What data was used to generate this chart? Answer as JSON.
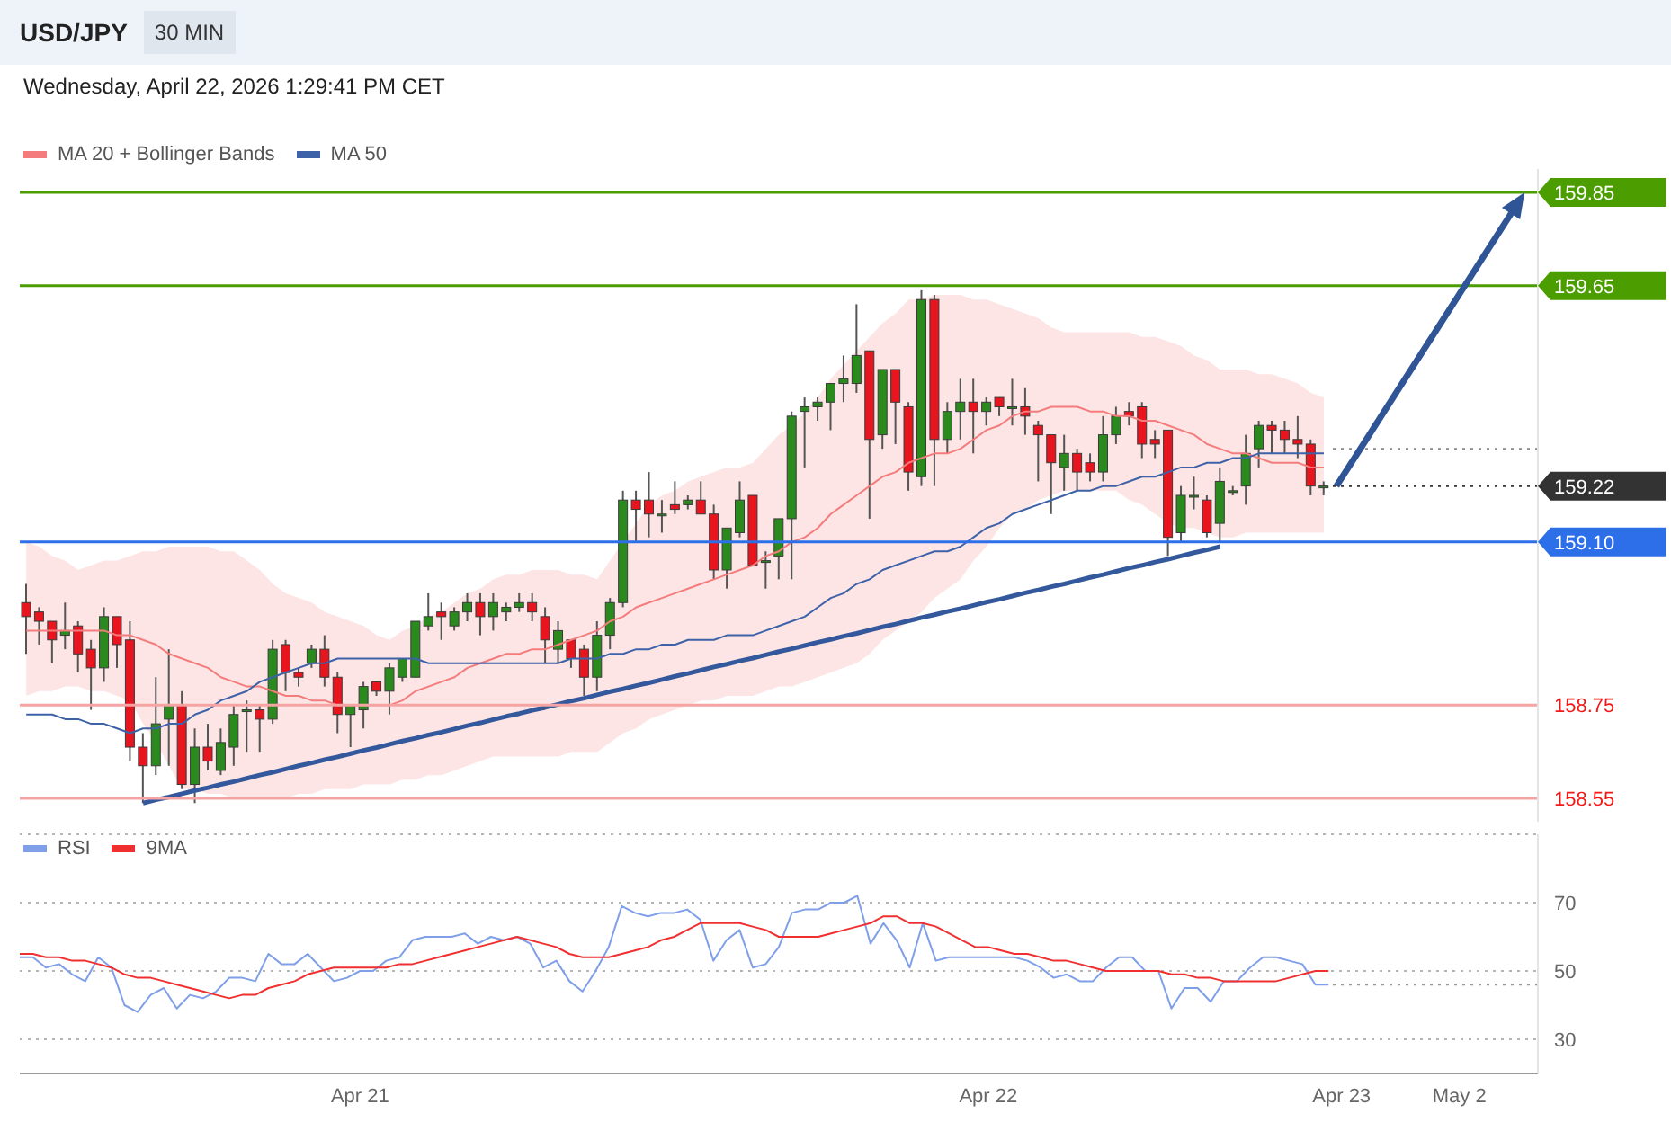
{
  "chart_data": [
    {
      "type": "candlestick",
      "title": "USD/JPY",
      "subtitle": "30 MIN",
      "annotations": [
        "Wednesday, April 22, 2026 1:29:41 PM CET"
      ],
      "categories": [
        null,
        null,
        null,
        null,
        null,
        null,
        null,
        null,
        null,
        null,
        null,
        null,
        null,
        null,
        null,
        null,
        null,
        null,
        null,
        null,
        null,
        null,
        null,
        null,
        null,
        null,
        null,
        null,
        null,
        null,
        null,
        null,
        null,
        null,
        null,
        null,
        null,
        null,
        null,
        null,
        null,
        null,
        null,
        null,
        null,
        null,
        null,
        null,
        null,
        null,
        null,
        null,
        null,
        null,
        null,
        null,
        null,
        null,
        null,
        null,
        null,
        null,
        null,
        null,
        null,
        null,
        null,
        null,
        null,
        null,
        null,
        null,
        null,
        null,
        null,
        null,
        null,
        null,
        null,
        null,
        null,
        null,
        null,
        null,
        null,
        null,
        null,
        null,
        null,
        null,
        null,
        null,
        null,
        null,
        null,
        null,
        null,
        null,
        null,
        null,
        null,
        null,
        null,
        null,
        null,
        null,
        null,
        null,
        null,
        null,
        null,
        null,
        null,
        null,
        null,
        null,
        null
      ],
      "ohlc": [
        [
          158.97,
          159.01,
          158.86,
          158.94
        ],
        [
          158.95,
          158.96,
          158.88,
          158.93
        ],
        [
          158.93,
          158.93,
          158.84,
          158.89
        ],
        [
          158.9,
          158.97,
          158.87,
          158.91
        ],
        [
          158.92,
          158.93,
          158.82,
          158.86
        ],
        [
          158.87,
          158.89,
          158.74,
          158.83
        ],
        [
          158.83,
          158.96,
          158.8,
          158.94
        ],
        [
          158.94,
          158.94,
          158.83,
          158.88
        ],
        [
          158.89,
          158.93,
          158.63,
          158.66
        ],
        [
          158.66,
          158.69,
          158.54,
          158.62
        ],
        [
          158.62,
          158.81,
          158.6,
          158.71
        ],
        [
          158.72,
          158.87,
          158.62,
          158.75
        ],
        [
          158.75,
          158.78,
          158.57,
          158.58
        ],
        [
          158.58,
          158.7,
          158.54,
          158.66
        ],
        [
          158.66,
          158.71,
          158.61,
          158.63
        ],
        [
          158.61,
          158.7,
          158.6,
          158.67
        ],
        [
          158.66,
          158.75,
          158.62,
          158.73
        ],
        [
          158.74,
          158.76,
          158.65,
          158.74
        ],
        [
          158.74,
          158.75,
          158.65,
          158.72
        ],
        [
          158.72,
          158.89,
          158.71,
          158.87
        ],
        [
          158.88,
          158.89,
          158.78,
          158.82
        ],
        [
          158.82,
          158.83,
          158.79,
          158.81
        ],
        [
          158.84,
          158.88,
          158.83,
          158.87
        ],
        [
          158.87,
          158.9,
          158.79,
          158.81
        ],
        [
          158.81,
          158.82,
          158.69,
          158.73
        ],
        [
          158.73,
          158.75,
          158.66,
          158.75
        ],
        [
          158.74,
          158.8,
          158.7,
          158.79
        ],
        [
          158.8,
          158.8,
          158.77,
          158.78
        ],
        [
          158.78,
          158.84,
          158.73,
          158.83
        ],
        [
          158.81,
          158.85,
          158.8,
          158.85
        ],
        [
          158.81,
          158.93,
          158.81,
          158.93
        ],
        [
          158.92,
          158.99,
          158.91,
          158.94
        ],
        [
          158.95,
          158.97,
          158.89,
          158.94
        ],
        [
          158.92,
          158.96,
          158.91,
          158.95
        ],
        [
          158.95,
          158.99,
          158.93,
          158.97
        ],
        [
          158.97,
          158.99,
          158.9,
          158.94
        ],
        [
          158.94,
          158.99,
          158.91,
          158.97
        ],
        [
          158.95,
          158.97,
          158.93,
          158.96
        ],
        [
          158.96,
          158.99,
          158.95,
          158.97
        ],
        [
          158.97,
          158.99,
          158.93,
          158.95
        ],
        [
          158.94,
          158.96,
          158.84,
          158.89
        ],
        [
          158.87,
          158.93,
          158.84,
          158.91
        ],
        [
          158.89,
          158.89,
          158.83,
          158.85
        ],
        [
          158.87,
          158.88,
          158.77,
          158.81
        ],
        [
          158.81,
          158.93,
          158.78,
          158.9
        ],
        [
          158.9,
          158.98,
          158.87,
          158.97
        ],
        [
          158.97,
          159.21,
          158.96,
          159.19
        ],
        [
          159.19,
          159.21,
          159.1,
          159.17
        ],
        [
          159.19,
          159.25,
          159.11,
          159.16
        ],
        [
          159.16,
          159.19,
          159.12,
          159.16
        ],
        [
          159.18,
          159.23,
          159.16,
          159.17
        ],
        [
          159.18,
          159.2,
          159.17,
          159.19
        ],
        [
          159.19,
          159.23,
          159.16,
          159.16
        ],
        [
          159.16,
          159.18,
          159.02,
          159.04
        ],
        [
          159.04,
          159.13,
          159.0,
          159.13
        ],
        [
          159.12,
          159.23,
          159.11,
          159.19
        ],
        [
          159.2,
          159.2,
          159.05,
          159.05
        ],
        [
          159.06,
          159.08,
          159.0,
          159.06
        ],
        [
          159.07,
          159.15,
          159.02,
          159.15
        ],
        [
          159.15,
          159.38,
          159.02,
          159.37
        ],
        [
          159.38,
          159.41,
          159.26,
          159.39
        ],
        [
          159.39,
          159.41,
          159.36,
          159.4
        ],
        [
          159.4,
          159.44,
          159.34,
          159.44
        ],
        [
          159.44,
          159.5,
          159.4,
          159.45
        ],
        [
          159.44,
          159.61,
          159.42,
          159.5
        ],
        [
          159.51,
          159.51,
          159.15,
          159.32
        ],
        [
          159.33,
          159.47,
          159.3,
          159.47
        ],
        [
          159.47,
          159.47,
          159.31,
          159.4
        ],
        [
          159.39,
          159.4,
          159.21,
          159.25
        ],
        [
          159.24,
          159.64,
          159.22,
          159.62
        ],
        [
          159.62,
          159.63,
          159.22,
          159.32
        ],
        [
          159.32,
          159.4,
          159.29,
          159.38
        ],
        [
          159.38,
          159.45,
          159.32,
          159.4
        ],
        [
          159.4,
          159.45,
          159.29,
          159.38
        ],
        [
          159.38,
          159.41,
          159.35,
          159.4
        ],
        [
          159.41,
          159.41,
          159.37,
          159.39
        ],
        [
          159.39,
          159.45,
          159.35,
          159.39
        ],
        [
          159.39,
          159.43,
          159.33,
          159.37
        ],
        [
          159.35,
          159.36,
          159.23,
          159.33
        ],
        [
          159.33,
          159.33,
          159.16,
          159.27
        ],
        [
          159.26,
          159.33,
          159.21,
          159.29
        ],
        [
          159.29,
          159.3,
          159.21,
          159.25
        ],
        [
          159.27,
          159.29,
          159.23,
          159.25
        ],
        [
          159.25,
          159.37,
          159.23,
          159.33
        ],
        [
          159.33,
          159.39,
          159.31,
          159.37
        ],
        [
          159.38,
          159.4,
          159.35,
          159.37
        ],
        [
          159.39,
          159.4,
          159.28,
          159.31
        ],
        [
          159.32,
          159.34,
          159.28,
          159.31
        ],
        [
          159.34,
          159.34,
          159.07,
          159.11
        ],
        [
          159.12,
          159.22,
          159.1,
          159.2
        ],
        [
          159.2,
          159.24,
          159.17,
          159.2
        ],
        [
          159.19,
          159.2,
          159.11,
          159.12
        ],
        [
          159.14,
          159.26,
          159.1,
          159.23
        ],
        [
          159.21,
          159.22,
          159.2,
          159.21
        ],
        [
          159.22,
          159.33,
          159.18,
          159.29
        ],
        [
          159.3,
          159.36,
          159.26,
          159.35
        ],
        [
          159.35,
          159.36,
          159.29,
          159.34
        ],
        [
          159.34,
          159.36,
          159.29,
          159.32
        ],
        [
          159.32,
          159.37,
          159.28,
          159.31
        ],
        [
          159.31,
          159.32,
          159.2,
          159.22
        ],
        [
          159.22,
          159.23,
          159.2,
          159.22
        ],
        null,
        null,
        null,
        null,
        null,
        null,
        null,
        null,
        null,
        null,
        null,
        null,
        null,
        null,
        null,
        null
      ],
      "ylim": [
        158.5,
        159.9
      ],
      "yticks": [
        158.55,
        158.75,
        {
          "value": 159.1,
          "label": "159.10"
        },
        159.22,
        159.65,
        159.85
      ],
      "tick_labels": "y",
      "legend": "top left",
      "series": [
        {
          "name": "MA 20 + Bollinger Bands",
          "type": "line",
          "color": "#f47c7c",
          "values": [
            158.91,
            158.91,
            158.91,
            158.91,
            158.91,
            158.91,
            158.91,
            158.9,
            158.9,
            158.89,
            158.88,
            158.86,
            158.85,
            158.84,
            158.83,
            158.81,
            158.8,
            158.79,
            158.79,
            158.78,
            158.77,
            158.77,
            158.76,
            158.76,
            158.75,
            158.75,
            158.75,
            158.75,
            158.75,
            158.76,
            158.78,
            158.79,
            158.8,
            158.81,
            158.83,
            158.84,
            158.85,
            158.86,
            158.86,
            158.87,
            158.87,
            158.88,
            158.89,
            158.9,
            158.91,
            158.93,
            158.94,
            158.96,
            158.97,
            158.98,
            158.99,
            159.0,
            159.01,
            159.02,
            159.03,
            159.04,
            159.05,
            159.07,
            159.08,
            159.1,
            159.11,
            159.13,
            159.16,
            159.18,
            159.2,
            159.22,
            159.24,
            159.25,
            159.27,
            159.28,
            159.29,
            159.29,
            159.3,
            159.32,
            159.34,
            159.35,
            159.37,
            159.38,
            159.38,
            159.39,
            159.39,
            159.39,
            159.38,
            159.38,
            159.37,
            159.37,
            159.36,
            159.36,
            159.35,
            159.34,
            159.33,
            159.31,
            159.3,
            159.29,
            159.29,
            159.28,
            159.27,
            159.27,
            159.27,
            159.26,
            159.26,
            null,
            null,
            null,
            null,
            null,
            null,
            null,
            null,
            null,
            null,
            null,
            null,
            null,
            null,
            null,
            null
          ],
          "lower": [
            158.77,
            158.78,
            158.78,
            158.79,
            158.79,
            158.78,
            158.78,
            158.77,
            158.76,
            158.71,
            158.67,
            158.62,
            158.57,
            158.57,
            158.56,
            158.56,
            158.55,
            158.55,
            158.55,
            158.55,
            158.55,
            158.56,
            158.56,
            158.57,
            158.57,
            158.57,
            158.58,
            158.58,
            158.58,
            158.59,
            158.59,
            158.6,
            158.6,
            158.61,
            158.62,
            158.63,
            158.64,
            158.64,
            158.64,
            158.64,
            158.64,
            158.64,
            158.65,
            158.65,
            158.65,
            158.67,
            158.69,
            158.7,
            158.72,
            158.73,
            158.74,
            158.75,
            158.76,
            158.76,
            158.77,
            158.77,
            158.77,
            158.78,
            158.79,
            158.79,
            158.8,
            158.81,
            158.82,
            158.83,
            158.84,
            158.86,
            158.89,
            158.91,
            158.93,
            158.95,
            158.98,
            159.0,
            159.02,
            159.06,
            159.09,
            159.13,
            159.16,
            159.17,
            159.19,
            159.2,
            159.21,
            159.21,
            159.21,
            159.21,
            159.21,
            159.19,
            159.18,
            159.16,
            159.14,
            159.13,
            159.13,
            159.12,
            159.11,
            159.11,
            159.12,
            159.12,
            159.12,
            159.12,
            159.12,
            159.12,
            159.12,
            null,
            null,
            null,
            null,
            null,
            null,
            null,
            null,
            null,
            null,
            null,
            null,
            null,
            null,
            null,
            null
          ],
          "upper": [
            159.1,
            159.09,
            159.07,
            159.06,
            159.04,
            159.05,
            159.06,
            159.06,
            159.07,
            159.08,
            159.08,
            159.09,
            159.09,
            159.09,
            159.09,
            159.08,
            159.08,
            159.06,
            159.04,
            159.01,
            158.99,
            158.98,
            158.97,
            158.95,
            158.94,
            158.93,
            158.92,
            158.9,
            158.89,
            158.91,
            158.92,
            158.94,
            158.95,
            158.97,
            158.99,
            159.0,
            159.02,
            159.03,
            159.03,
            159.04,
            159.04,
            159.04,
            159.03,
            159.03,
            159.02,
            159.06,
            159.1,
            159.14,
            159.18,
            159.2,
            159.21,
            159.23,
            159.24,
            159.25,
            159.26,
            159.26,
            159.27,
            159.3,
            159.33,
            159.35,
            159.38,
            159.41,
            159.45,
            159.48,
            159.51,
            159.54,
            159.57,
            159.59,
            159.62,
            159.62,
            159.63,
            159.63,
            159.63,
            159.62,
            159.62,
            159.61,
            159.6,
            159.59,
            159.58,
            159.56,
            159.55,
            159.55,
            159.55,
            159.55,
            159.55,
            159.55,
            159.54,
            159.54,
            159.53,
            159.52,
            159.5,
            159.49,
            159.47,
            159.47,
            159.47,
            159.46,
            159.46,
            159.45,
            159.44,
            159.42,
            159.41,
            null,
            null,
            null,
            null,
            null,
            null,
            null,
            null,
            null,
            null,
            null,
            null,
            null,
            null,
            null,
            null
          ]
        },
        {
          "name": "MA 50",
          "type": "line",
          "color": "#3d62a8",
          "values": [
            158.73,
            158.73,
            158.73,
            158.72,
            158.72,
            158.71,
            158.71,
            158.7,
            158.69,
            158.7,
            158.7,
            158.71,
            158.71,
            158.73,
            158.74,
            158.76,
            158.77,
            158.78,
            158.8,
            158.81,
            158.82,
            158.83,
            158.84,
            158.84,
            158.85,
            158.85,
            158.85,
            158.85,
            158.85,
            158.85,
            158.85,
            158.84,
            158.84,
            158.84,
            158.84,
            158.84,
            158.84,
            158.84,
            158.84,
            158.84,
            158.84,
            158.84,
            158.85,
            158.85,
            158.85,
            158.86,
            158.86,
            158.87,
            158.87,
            158.88,
            158.88,
            158.89,
            158.89,
            158.89,
            158.9,
            158.9,
            158.9,
            158.91,
            158.92,
            158.93,
            158.94,
            158.96,
            158.98,
            158.99,
            159.01,
            159.02,
            159.04,
            159.05,
            159.06,
            159.07,
            159.08,
            159.08,
            159.09,
            159.11,
            159.13,
            159.14,
            159.16,
            159.17,
            159.18,
            159.19,
            159.2,
            159.21,
            159.21,
            159.22,
            159.22,
            159.23,
            159.24,
            159.24,
            159.25,
            159.26,
            159.26,
            159.27,
            159.27,
            159.28,
            159.28,
            159.29,
            159.29,
            159.29,
            159.29,
            159.29,
            159.29,
            null,
            null,
            null,
            null,
            null,
            null,
            null,
            null,
            null,
            null,
            null,
            null,
            null,
            null,
            null,
            null
          ]
        },
        {
          "type": "line",
          "color": "#34589c",
          "values": [
            null,
            null,
            null,
            null,
            null,
            null,
            null,
            null,
            null,
            158.54,
            158.547,
            158.553,
            158.56,
            158.567,
            158.573,
            158.58,
            158.586,
            158.593,
            158.6,
            158.606,
            158.613,
            158.62,
            158.626,
            158.633,
            158.639,
            158.646,
            158.653,
            158.659,
            158.666,
            158.673,
            158.679,
            158.686,
            158.692,
            158.699,
            158.706,
            158.712,
            158.719,
            158.726,
            158.732,
            158.739,
            158.745,
            158.752,
            158.759,
            158.765,
            158.772,
            158.779,
            158.785,
            158.792,
            158.798,
            158.805,
            158.812,
            158.818,
            158.825,
            158.832,
            158.838,
            158.845,
            158.851,
            158.858,
            158.865,
            158.871,
            158.878,
            158.885,
            158.891,
            158.898,
            158.904,
            158.911,
            158.918,
            158.924,
            158.931,
            158.938,
            158.944,
            158.951,
            158.957,
            158.964,
            158.971,
            158.977,
            158.984,
            158.991,
            158.997,
            159.004,
            159.01,
            159.017,
            159.024,
            159.03,
            159.037,
            159.044,
            159.05,
            159.057,
            159.063,
            159.07,
            159.077,
            159.083,
            159.09,
            null,
            null,
            null,
            null,
            null,
            null,
            null,
            null,
            null,
            null,
            null,
            null,
            null,
            null,
            null,
            null,
            null,
            null,
            null,
            null,
            null,
            null,
            null,
            null
          ]
        }
      ],
      "ref_lines": [
        {
          "axis": "y",
          "value": 159.85,
          "color": "#4c9e00"
        },
        {
          "axis": "y",
          "value": 159.65,
          "color": "#4c9e00"
        },
        {
          "axis": "y",
          "value": 159.3,
          "color": "#888888",
          "line_style": "dotted"
        },
        {
          "axis": "y",
          "value": 159.22,
          "color": "#333333",
          "line_style": "dotted"
        },
        {
          "axis": "y",
          "value": 159.1,
          "color": "#2d6fe8"
        },
        {
          "axis": "y",
          "value": 158.75,
          "color": "#f5a3a3"
        },
        {
          "axis": "y",
          "value": 158.55,
          "color": "#f5a3a3"
        }
      ]
    },
    {
      "type": "line",
      "categories": [
        null,
        null,
        null,
        null,
        null,
        null,
        null,
        null,
        null,
        null,
        null,
        null,
        null,
        null,
        null,
        null,
        null,
        null,
        null,
        null,
        null,
        null,
        null,
        null,
        null,
        null,
        "Apr 21",
        null,
        null,
        null,
        null,
        null,
        null,
        null,
        null,
        null,
        null,
        null,
        null,
        null,
        null,
        null,
        null,
        null,
        null,
        null,
        null,
        null,
        null,
        null,
        null,
        null,
        null,
        null,
        null,
        null,
        null,
        null,
        null,
        null,
        null,
        null,
        null,
        null,
        null,
        null,
        null,
        null,
        null,
        null,
        null,
        null,
        null,
        null,
        "Apr 22",
        null,
        null,
        null,
        null,
        null,
        null,
        null,
        null,
        null,
        null,
        null,
        null,
        null,
        null,
        null,
        null,
        null,
        null,
        null,
        null,
        null,
        null,
        null,
        null,
        null,
        null,
        "Apr 23",
        null,
        null,
        null,
        null,
        null,
        null,
        null,
        null,
        "May 2",
        null,
        null,
        null,
        null,
        null,
        null
      ],
      "ylim": [
        20,
        90
      ],
      "yticks": [
        30,
        50,
        70
      ],
      "grid": "y",
      "legend": "top left",
      "series": [
        {
          "name": "RSI",
          "color": "#7f9fe8",
          "values": [
            54,
            54,
            51,
            52,
            49,
            47,
            54,
            51,
            40,
            38,
            43,
            45,
            39,
            43,
            42,
            44,
            48,
            48,
            47,
            55,
            52,
            52,
            55,
            51,
            47,
            48,
            50,
            50,
            53,
            54,
            59,
            60,
            60,
            60,
            61,
            58,
            60,
            59,
            60,
            58,
            51,
            53,
            47,
            44,
            50,
            57,
            69,
            67,
            66,
            67,
            67,
            68,
            65,
            53,
            59,
            62,
            51,
            52,
            57,
            67,
            68,
            68,
            70,
            70,
            72,
            58,
            64,
            59,
            51,
            64,
            53,
            54,
            54,
            54,
            54,
            54,
            54,
            53,
            51,
            48,
            49,
            47,
            47,
            51,
            54,
            54,
            50,
            50,
            39,
            45,
            45,
            41,
            47,
            47,
            51,
            54,
            54,
            53,
            52,
            46,
            46,
            null,
            null,
            null,
            null,
            null,
            null,
            null,
            null,
            null,
            null,
            null,
            null,
            null,
            null,
            null,
            null
          ]
        },
        {
          "name": "9MA",
          "color": "#f03030",
          "values": [
            55,
            55,
            54,
            54,
            53,
            53,
            52,
            51,
            49,
            48,
            48,
            47,
            46,
            45,
            44,
            43,
            42,
            43,
            43,
            45,
            46,
            47,
            49,
            50,
            51,
            51,
            51,
            51,
            51,
            52,
            52,
            53,
            54,
            55,
            56,
            57,
            58,
            59,
            60,
            59,
            58,
            57,
            55,
            54,
            54,
            54,
            55,
            56,
            57,
            59,
            60,
            62,
            64,
            64,
            64,
            64,
            63,
            62,
            60,
            60,
            60,
            60,
            61,
            62,
            63,
            64,
            66,
            66,
            64,
            64,
            63,
            61,
            59,
            57,
            57,
            56,
            55,
            55,
            54,
            53,
            53,
            52,
            51,
            50,
            50,
            50,
            50,
            50,
            49,
            49,
            48,
            48,
            47,
            47,
            47,
            47,
            47,
            48,
            49,
            50,
            50,
            null,
            null,
            null,
            null,
            null,
            null,
            null,
            null,
            null,
            null,
            null,
            null,
            null,
            null,
            null,
            null
          ]
        }
      ],
      "ref_lines": [
        {
          "axis": "y",
          "value": 46,
          "color": "#999999",
          "line_style": "dotted"
        }
      ]
    }
  ]
}
